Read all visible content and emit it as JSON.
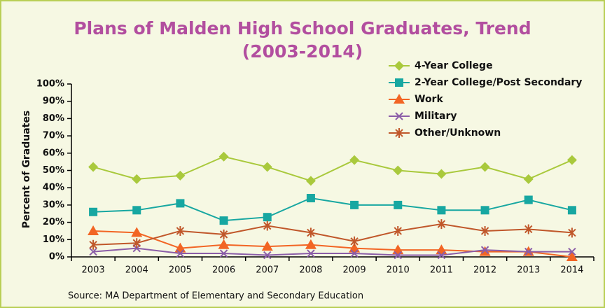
{
  "chart_data": {
    "type": "line",
    "title": "Plans of Malden High School Graduates, Trend (2003-2014)",
    "y_label": "Percent of Graduates",
    "source": "Source: MA Department of Elementary and Secondary Education",
    "categories": [
      "2003",
      "2004",
      "2005",
      "2006",
      "2007",
      "2008",
      "2009",
      "2010",
      "2011",
      "2012",
      "2013",
      "2014"
    ],
    "series": [
      {
        "name": "4-Year College",
        "color": "#a9c93c",
        "marker": "diamond",
        "values": [
          52,
          45,
          47,
          58,
          52,
          44,
          56,
          50,
          48,
          52,
          45,
          56
        ]
      },
      {
        "name": "2-Year College/Post Secondary",
        "color": "#17a7a1",
        "marker": "square",
        "values": [
          26,
          27,
          31,
          21,
          23,
          34,
          30,
          30,
          27,
          27,
          33,
          27
        ]
      },
      {
        "name": "Work",
        "color": "#f26524",
        "marker": "triangle",
        "values": [
          15,
          14,
          5,
          7,
          6,
          7,
          5,
          4,
          4,
          3,
          3,
          0
        ]
      },
      {
        "name": "Military",
        "color": "#8b5da8",
        "marker": "x",
        "values": [
          3,
          5,
          2,
          2,
          1,
          2,
          2,
          1,
          1,
          4,
          3,
          3
        ]
      },
      {
        "name": "Other/Unknown",
        "color": "#c0572a",
        "marker": "asterisk",
        "values": [
          7,
          8,
          15,
          13,
          18,
          14,
          9,
          15,
          19,
          15,
          16,
          14
        ]
      }
    ],
    "ylim": [
      0,
      100
    ],
    "yticks": [
      {
        "value": 0,
        "label": "0%"
      },
      {
        "value": 10,
        "label": "10%"
      },
      {
        "value": 20,
        "label": "20%"
      },
      {
        "value": 30,
        "label": "30%"
      },
      {
        "value": 40,
        "label": "40%"
      },
      {
        "value": 50,
        "label": "50%"
      },
      {
        "value": 60,
        "label": "60%"
      },
      {
        "value": 70,
        "label": "70%"
      },
      {
        "value": 80,
        "label": "80%"
      },
      {
        "value": 90,
        "label": "90%"
      },
      {
        "value": 100,
        "label": "100%"
      }
    ],
    "legend": "upper right"
  }
}
